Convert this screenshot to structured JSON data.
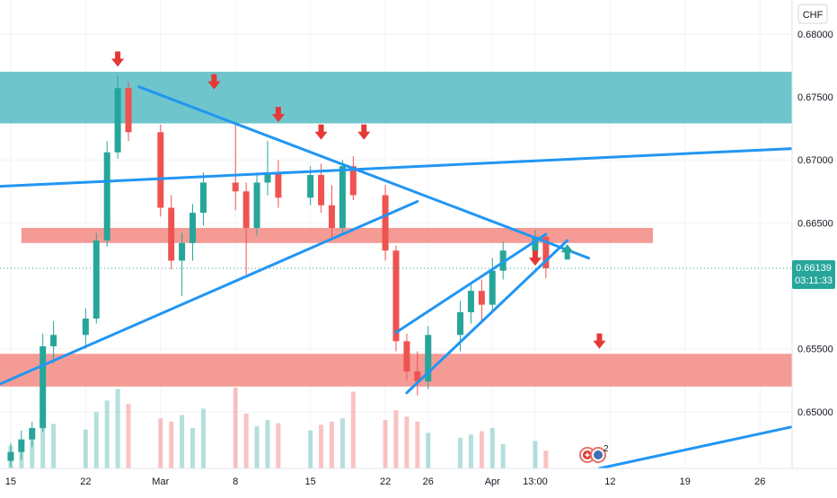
{
  "chart_data": {
    "type": "candlestick",
    "currency": "CHF",
    "price_axis": {
      "min": 0.6455,
      "max": 0.6827,
      "ticks": [
        {
          "value": 0.68,
          "label": "0.68000"
        },
        {
          "value": 0.675,
          "label": "0.67500"
        },
        {
          "value": 0.67,
          "label": "0.67000"
        },
        {
          "value": 0.665,
          "label": "0.66500"
        },
        {
          "value": 0.655,
          "label": "0.65500"
        },
        {
          "value": 0.65,
          "label": "0.65000"
        }
      ]
    },
    "time_axis": {
      "start": "2021-02-14",
      "end": "2021-04-29",
      "ticks": [
        {
          "date": "2021-02-15",
          "label": "15"
        },
        {
          "date": "2021-02-22",
          "label": "22"
        },
        {
          "date": "2021-03-01",
          "label": "Mar"
        },
        {
          "date": "2021-03-08",
          "label": "8"
        },
        {
          "date": "2021-03-15",
          "label": "15"
        },
        {
          "date": "2021-03-22",
          "label": "22"
        },
        {
          "date": "2021-03-26",
          "label": "26"
        },
        {
          "date": "2021-04-01",
          "label": "Apr"
        },
        {
          "date": "2021-04-05",
          "label": "13:00"
        },
        {
          "date": "2021-04-12",
          "label": "12"
        },
        {
          "date": "2021-04-19",
          "label": "19"
        },
        {
          "date": "2021-04-26",
          "label": "26"
        }
      ]
    },
    "current_price": {
      "value": 0.66139,
      "label": "0.66139",
      "countdown": "03:11:33"
    },
    "zones": [
      {
        "kind": "resistance",
        "color": "#5fbfc6",
        "price_low": 0.6729,
        "price_high": 0.677,
        "from": "2021-02-14",
        "to": "2021-04-29"
      },
      {
        "kind": "pivot",
        "color": "#f4908a",
        "price_low": 0.6634,
        "price_high": 0.6646,
        "from": "2021-02-16",
        "to": "2021-04-16"
      },
      {
        "kind": "support",
        "color": "#f4908a",
        "price_low": 0.652,
        "price_high": 0.6546,
        "from": "2021-02-14",
        "to": "2021-04-29"
      }
    ],
    "trendlines": [
      {
        "from_date": "2021-02-14",
        "from_price": 0.6679,
        "to_date": "2021-04-29",
        "to_price": 0.6709
      },
      {
        "from_date": "2021-02-27",
        "from_price": 0.6758,
        "to_date": "2021-04-10",
        "to_price": 0.6622
      },
      {
        "from_date": "2021-02-14",
        "from_price": 0.6522,
        "to_date": "2021-03-25",
        "to_price": 0.6667
      },
      {
        "from_date": "2021-03-23",
        "from_price": 0.6563,
        "to_date": "2021-04-06",
        "to_price": 0.6641
      },
      {
        "from_date": "2021-03-24",
        "from_price": 0.6515,
        "to_date": "2021-04-08",
        "to_price": 0.6636
      },
      {
        "from_date": "2021-04-11",
        "from_price": 0.6455,
        "to_date": "2021-04-29",
        "to_price": 0.6488
      }
    ],
    "markers": [
      {
        "type": "arrow-down",
        "color": "#e53935",
        "date": "2021-02-25",
        "price": 0.6779
      },
      {
        "type": "arrow-down",
        "color": "#e53935",
        "date": "2021-03-06",
        "price": 0.6761
      },
      {
        "type": "arrow-down",
        "color": "#e53935",
        "date": "2021-03-12",
        "price": 0.6735
      },
      {
        "type": "arrow-down",
        "color": "#e53935",
        "date": "2021-03-16",
        "price": 0.6721
      },
      {
        "type": "arrow-down",
        "color": "#e53935",
        "date": "2021-03-20",
        "price": 0.6721
      },
      {
        "type": "arrow-down",
        "color": "#e53935",
        "date": "2021-04-05",
        "price": 0.6621
      },
      {
        "type": "arrow-up",
        "color": "#26a69a",
        "date": "2021-04-08",
        "price": 0.6628
      },
      {
        "type": "arrow-down",
        "color": "#e53935",
        "date": "2021-04-11",
        "price": 0.6555
      }
    ],
    "ohlc": [
      [
        "2021-02-15",
        0.6461,
        0.6475,
        0.6456,
        0.6468
      ],
      [
        "2021-02-16",
        0.6468,
        0.6485,
        0.6462,
        0.6478
      ],
      [
        "2021-02-17",
        0.6478,
        0.6492,
        0.6472,
        0.6487
      ],
      [
        "2021-02-18",
        0.6487,
        0.6562,
        0.6484,
        0.6552
      ],
      [
        "2021-02-19",
        0.6552,
        0.6572,
        0.6538,
        0.6561
      ],
      [
        "2021-02-22",
        0.6561,
        0.6582,
        0.655,
        0.6574
      ],
      [
        "2021-02-23",
        0.6574,
        0.6642,
        0.657,
        0.6636
      ],
      [
        "2021-02-24",
        0.6636,
        0.6715,
        0.6631,
        0.6706
      ],
      [
        "2021-02-25",
        0.6706,
        0.6767,
        0.6701,
        0.6757
      ],
      [
        "2021-02-26",
        0.6757,
        0.6762,
        0.6715,
        0.6722
      ],
      [
        "2021-03-01",
        0.6722,
        0.6728,
        0.6655,
        0.6662
      ],
      [
        "2021-03-02",
        0.6662,
        0.6672,
        0.6613,
        0.662
      ],
      [
        "2021-03-03",
        0.662,
        0.6642,
        0.6592,
        0.6634
      ],
      [
        "2021-03-04",
        0.6634,
        0.6665,
        0.662,
        0.6658
      ],
      [
        "2021-03-05",
        0.6658,
        0.669,
        0.6648,
        0.6682
      ],
      [
        "2021-03-08",
        0.6682,
        0.673,
        0.666,
        0.6675
      ],
      [
        "2021-03-09",
        0.6675,
        0.6682,
        0.6609,
        0.6646
      ],
      [
        "2021-03-10",
        0.6646,
        0.669,
        0.664,
        0.6682
      ],
      [
        "2021-03-11",
        0.6682,
        0.6715,
        0.6672,
        0.669
      ],
      [
        "2021-03-12",
        0.669,
        0.67,
        0.6662,
        0.667
      ],
      [
        "2021-03-15",
        0.667,
        0.6695,
        0.6664,
        0.6688
      ],
      [
        "2021-03-16",
        0.6688,
        0.6697,
        0.6658,
        0.6664
      ],
      [
        "2021-03-17",
        0.6664,
        0.668,
        0.6638,
        0.6646
      ],
      [
        "2021-03-18",
        0.6646,
        0.67,
        0.664,
        0.6695
      ],
      [
        "2021-03-19",
        0.6695,
        0.6703,
        0.6668,
        0.6672
      ],
      [
        "2021-03-22",
        0.6672,
        0.668,
        0.662,
        0.6628
      ],
      [
        "2021-03-23",
        0.6628,
        0.6632,
        0.6548,
        0.6556
      ],
      [
        "2021-03-24",
        0.6556,
        0.6562,
        0.6525,
        0.6532
      ],
      [
        "2021-03-25",
        0.6532,
        0.6548,
        0.6513,
        0.6524
      ],
      [
        "2021-03-26",
        0.6524,
        0.6568,
        0.6518,
        0.6561
      ],
      [
        "2021-03-29",
        0.6561,
        0.6588,
        0.6548,
        0.6579
      ],
      [
        "2021-03-30",
        0.6579,
        0.6603,
        0.657,
        0.6596
      ],
      [
        "2021-03-31",
        0.6596,
        0.6605,
        0.6572,
        0.6585
      ],
      [
        "2021-04-01",
        0.6585,
        0.6622,
        0.658,
        0.6612
      ],
      [
        "2021-04-02",
        0.6612,
        0.6635,
        0.6605,
        0.6628
      ],
      [
        "2021-04-05",
        0.6628,
        0.6644,
        0.6618,
        0.6639
      ],
      [
        "2021-04-06",
        0.6639,
        0.6641,
        0.6606,
        0.6614
      ]
    ],
    "volume": [
      [
        "2021-02-15",
        28
      ],
      [
        "2021-02-16",
        35
      ],
      [
        "2021-02-17",
        40
      ],
      [
        "2021-02-18",
        72
      ],
      [
        "2021-02-19",
        55
      ],
      [
        "2021-02-22",
        48
      ],
      [
        "2021-02-23",
        70
      ],
      [
        "2021-02-24",
        84
      ],
      [
        "2021-02-25",
        98
      ],
      [
        "2021-02-26",
        80
      ],
      [
        "2021-03-01",
        62
      ],
      [
        "2021-03-02",
        58
      ],
      [
        "2021-03-03",
        66
      ],
      [
        "2021-03-04",
        50
      ],
      [
        "2021-03-05",
        74
      ],
      [
        "2021-03-08",
        100
      ],
      [
        "2021-03-09",
        68
      ],
      [
        "2021-03-10",
        52
      ],
      [
        "2021-03-11",
        60
      ],
      [
        "2021-03-12",
        56
      ],
      [
        "2021-03-15",
        47
      ],
      [
        "2021-03-16",
        54
      ],
      [
        "2021-03-17",
        58
      ],
      [
        "2021-03-18",
        62
      ],
      [
        "2021-03-19",
        95
      ],
      [
        "2021-03-22",
        60
      ],
      [
        "2021-03-23",
        72
      ],
      [
        "2021-03-24",
        64
      ],
      [
        "2021-03-25",
        58
      ],
      [
        "2021-03-26",
        44
      ],
      [
        "2021-03-29",
        38
      ],
      [
        "2021-03-30",
        42
      ],
      [
        "2021-03-31",
        46
      ],
      [
        "2021-04-01",
        50
      ],
      [
        "2021-04-02",
        30
      ],
      [
        "2021-04-05",
        34
      ],
      [
        "2021-04-06",
        22
      ]
    ],
    "notification": {
      "badge": "2"
    }
  }
}
